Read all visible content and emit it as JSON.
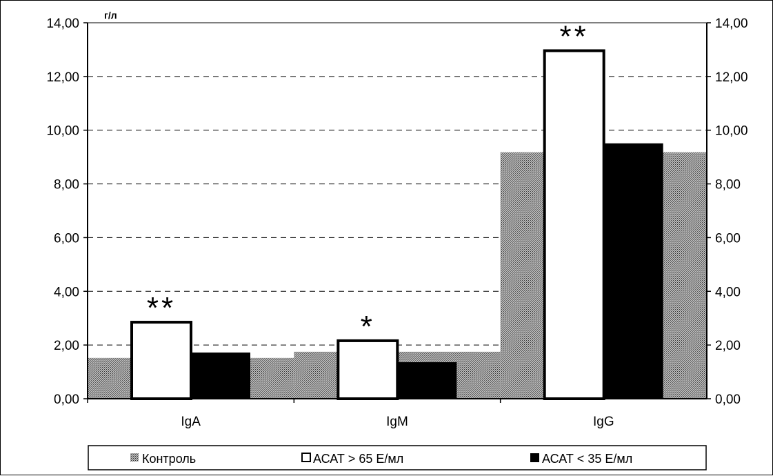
{
  "chart_data": {
    "type": "bar",
    "unit_label": "г/л",
    "categories": [
      "IgA",
      "IgM",
      "IgG"
    ],
    "series": [
      {
        "name": "Контроль",
        "values": [
          1.52,
          1.75,
          9.18
        ],
        "color": "#9a9a9a"
      },
      {
        "name": "АСАТ > 65 Е/мл",
        "values": [
          2.85,
          2.16,
          12.96
        ],
        "color": "#ffffff"
      },
      {
        "name": "АСАТ < 35 Е/мл",
        "values": [
          1.72,
          1.36,
          9.51
        ],
        "color": "#000000"
      }
    ],
    "annotations": [
      "**",
      "*",
      "**"
    ],
    "ylim": [
      0,
      14
    ],
    "yticks": [
      "0,00",
      "2,00",
      "4,00",
      "6,00",
      "8,00",
      "10,00",
      "12,00",
      "14,00"
    ],
    "grid": true,
    "secondary_y_axis": true,
    "legend_placement": "bottom"
  }
}
